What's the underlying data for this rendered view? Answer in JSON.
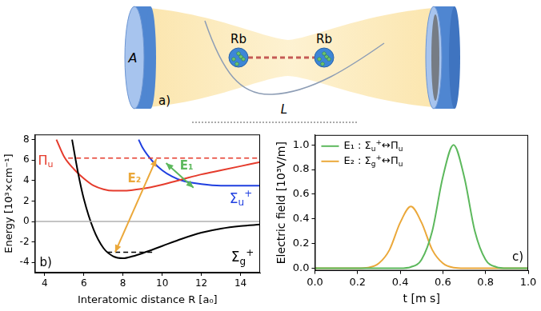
{
  "diagram": {
    "panel_label": "a)",
    "mirror_label": "A",
    "atom_labels": [
      "Rb",
      "Rb"
    ],
    "length_label": "L"
  },
  "chart_data": [
    {
      "type": "line",
      "panel_label": "b)",
      "x_label": "Interatomic distance R [a₀]",
      "y_label": "Energy [10³×cm⁻¹]",
      "xlim": [
        3.5,
        15
      ],
      "xticks": [
        4,
        6,
        8,
        10,
        12,
        14
      ],
      "ylim": [
        -5,
        8.5
      ],
      "yticks": [
        -4,
        -2,
        0,
        2,
        4,
        6,
        8
      ],
      "grid": false,
      "series": [
        {
          "name": "Σg+",
          "color": "#000000",
          "x": [
            5.4,
            5.7,
            6,
            6.5,
            7,
            7.5,
            8,
            8.5,
            9,
            10,
            11,
            12,
            13,
            14,
            15
          ],
          "values": [
            8,
            4.8,
            2.2,
            -0.8,
            -2.6,
            -3.4,
            -3.6,
            -3.4,
            -3.1,
            -2.4,
            -1.7,
            -1.1,
            -0.7,
            -0.45,
            -0.3
          ]
        },
        {
          "name": "Πu",
          "color": "#e53b2c",
          "x": [
            4.6,
            5,
            5.5,
            6,
            6.5,
            7,
            7.5,
            8,
            9,
            10,
            11,
            12,
            13,
            14,
            15
          ],
          "values": [
            8,
            6.3,
            5.1,
            4.2,
            3.5,
            3.15,
            3.0,
            3.0,
            3.2,
            3.6,
            4.1,
            4.6,
            5.0,
            5.4,
            5.8
          ]
        },
        {
          "name": "Σu+",
          "color": "#1f3fe0",
          "x": [
            8.8,
            9,
            9.5,
            10,
            10.5,
            11,
            12,
            13,
            14,
            15
          ],
          "values": [
            8,
            7.2,
            5.9,
            5.0,
            4.4,
            4.0,
            3.65,
            3.5,
            3.5,
            3.5
          ]
        }
      ],
      "lines": [
        {
          "x": [
            3.5,
            15
          ],
          "y": [
            0,
            0
          ],
          "color": "#b0b0b0",
          "line_style": "solid"
        },
        {
          "x": [
            5.2,
            15
          ],
          "y": [
            6.2,
            6.2
          ],
          "color": "#e53b2c",
          "line_style": "dashed"
        },
        {
          "x": [
            7.2,
            9.5
          ],
          "y": [
            -3.0,
            -3.0
          ],
          "color": "#000000",
          "line_style": "dashed"
        }
      ],
      "arrows": [
        {
          "label": "E₁",
          "color": "#5cb85c",
          "x": [
            10.2,
            11.6
          ],
          "y": [
            5.7,
            3.3
          ]
        },
        {
          "label": "E₂",
          "color": "#eba83a",
          "x": [
            7.6,
            9.7
          ],
          "y": [
            -3.0,
            6.1
          ]
        }
      ]
    },
    {
      "type": "line",
      "panel_label": "c)",
      "x_label": "t [m s]",
      "y_label": "Electric field [10³V/m]",
      "xlim": [
        0,
        1
      ],
      "xticks": [
        {
          "value": 0,
          "label": "0.0"
        },
        0.2,
        0.4,
        0.6,
        0.8,
        {
          "value": 1,
          "label": "1.0"
        }
      ],
      "ylim": [
        -0.02,
        1.08
      ],
      "yticks": [
        {
          "value": 0,
          "label": "0.0"
        },
        0.2,
        0.4,
        0.6,
        0.8,
        {
          "value": 1,
          "label": "1.0"
        }
      ],
      "grid": false,
      "legend": "upper left",
      "x": [
        0,
        0.1,
        0.2,
        0.25,
        0.3,
        0.35,
        0.4,
        0.45,
        0.5,
        0.55,
        0.6,
        0.65,
        0.7,
        0.75,
        0.8,
        0.85,
        0.9,
        1.0
      ],
      "series": [
        {
          "name": "E₁ : Σu+↔Πu",
          "color": "#5cb85c",
          "values": [
            0,
            0,
            0,
            0,
            0,
            0,
            0,
            0.01,
            0.07,
            0.3,
            0.74,
            1.0,
            0.74,
            0.3,
            0.07,
            0.01,
            0,
            0
          ]
        },
        {
          "name": "E₂ : Σg+↔Πu",
          "color": "#eba83a",
          "values": [
            0,
            0,
            0,
            0.005,
            0.04,
            0.15,
            0.37,
            0.5,
            0.37,
            0.15,
            0.04,
            0.005,
            0,
            0,
            0,
            0,
            0,
            0
          ]
        }
      ]
    }
  ]
}
